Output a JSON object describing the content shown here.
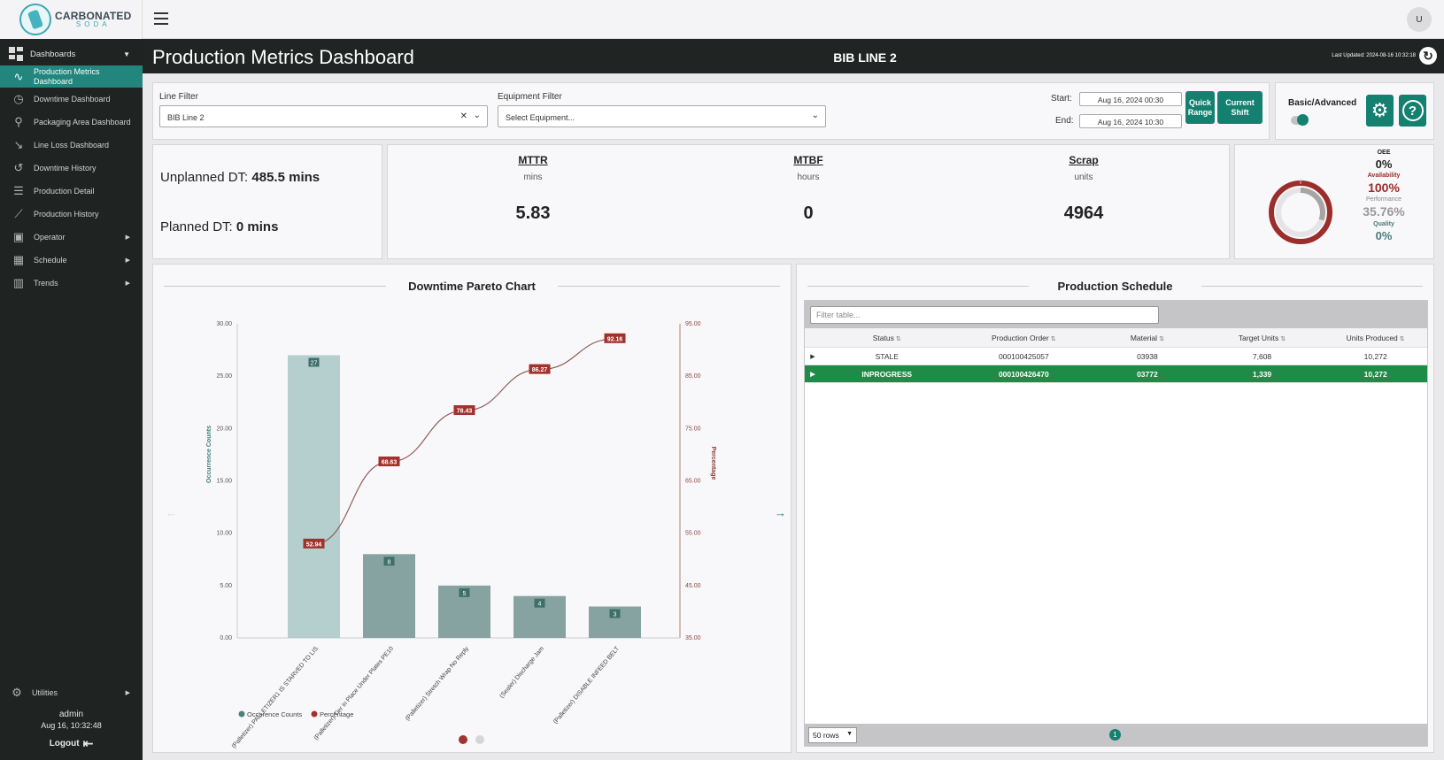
{
  "logo": {
    "line1": "CARBONATED",
    "line2": "SODA"
  },
  "sidebar": {
    "section": "Dashboards",
    "items": [
      {
        "label": "Production Metrics Dashboard",
        "icon": "trending-chart-icon",
        "glyph": "∿",
        "active": true
      },
      {
        "label": "Downtime Dashboard",
        "icon": "stopwatch-icon",
        "glyph": "◷"
      },
      {
        "label": "Packaging Area Dashboard",
        "icon": "map-pin-icon",
        "glyph": "⚲"
      },
      {
        "label": "Line Loss Dashboard",
        "icon": "trending-down-icon",
        "glyph": "↘"
      },
      {
        "label": "Downtime History",
        "icon": "history-icon",
        "glyph": "↺"
      },
      {
        "label": "Production Detail",
        "icon": "list-detail-icon",
        "glyph": "☰"
      },
      {
        "label": "Production History",
        "icon": "chart-history-icon",
        "glyph": "⟋"
      },
      {
        "label": "Operator",
        "icon": "operator-badge-icon",
        "glyph": "▣",
        "expandable": true
      },
      {
        "label": "Schedule",
        "icon": "calendar-icon",
        "glyph": "▦",
        "expandable": true
      },
      {
        "label": "Trends",
        "icon": "bar-chart-icon",
        "glyph": "▥",
        "expandable": true
      }
    ],
    "utilities": "Utilities",
    "user": "admin",
    "datetime": "Aug 16, 10:32:48",
    "logout": "Logout"
  },
  "topbar": {
    "avatar": "U"
  },
  "header": {
    "title": "Production Metrics Dashboard",
    "line": "BIB LINE 2",
    "last_updated": "Last Updated: 2024-08-16 10:32:18"
  },
  "filters": {
    "line_label": "Line Filter",
    "line_value": "BIB Line 2",
    "equipment_label": "Equipment Filter",
    "equipment_placeholder": "Select Equipment...",
    "start_label": "Start:",
    "start_value": "Aug 16, 2024 00:30",
    "end_label": "End:",
    "end_value": "Aug 16, 2024 10:30",
    "quick_range": "Quick Range",
    "current_shift": "Current Shift"
  },
  "settings": {
    "basic_advanced": "Basic/Advanced"
  },
  "downtime": {
    "unplanned_label": "Unplanned DT:",
    "unplanned_value": "485.5 mins",
    "planned_label": "Planned DT:",
    "planned_value": "0 mins"
  },
  "metrics": [
    {
      "title": "MTTR",
      "unit": "mins",
      "value": "5.83"
    },
    {
      "title": "MTBF",
      "unit": "hours",
      "value": "0"
    },
    {
      "title": "Scrap",
      "unit": "units",
      "value": "4964"
    }
  ],
  "oee": {
    "oee_label": "OEE",
    "oee_value": "0%",
    "availability_label": "Availability",
    "availability_value": "100%",
    "performance_label": "Performance",
    "performance_value": "35.76%",
    "quality_label": "Quality",
    "quality_value": "0%",
    "colors": {
      "availability": "#9b2d2b",
      "performance": "#9a9a9a",
      "quality": "#4b7a7a"
    }
  },
  "pareto": {
    "title": "Downtime Pareto Chart"
  },
  "chart_data": {
    "type": "bar",
    "title": "Downtime Pareto Chart",
    "categories": [
      "(Palletizer) PALLETIZER1 IS STARVED TO LIS",
      "(Palletizer) Tier in Place Under Plates PE10",
      "(Palletizer) Stretch Wrap No Reply",
      "(Sealer) Discharge Jam",
      "(Palletizer) DISABLE INFEED BELT"
    ],
    "series": [
      {
        "name": "Occurence Counts",
        "type": "bar",
        "axis": "left",
        "values": [
          27,
          8,
          5,
          4,
          3
        ],
        "color": "#8fb3b1"
      },
      {
        "name": "Percentage",
        "type": "line",
        "axis": "right",
        "values": [
          52.94,
          68.63,
          78.43,
          86.27,
          92.16
        ],
        "color": "#a0443f"
      }
    ],
    "ylabel": "Occurrence Counts",
    "y2label": "Percentage",
    "ylim": [
      0,
      30
    ],
    "y2lim": [
      35,
      95
    ],
    "yticks": [
      "0.00",
      "5.00",
      "10.00",
      "15.00",
      "20.00",
      "25.00",
      "30.00"
    ],
    "y2ticks": [
      "35.00",
      "45.00",
      "55.00",
      "65.00",
      "75.00",
      "85.00",
      "95.00"
    ],
    "legend": "bottom-left"
  },
  "schedule": {
    "title": "Production Schedule",
    "filter_placeholder": "Filter table...",
    "columns": [
      "Status",
      "Production Order",
      "Material",
      "Target Units",
      "Units Produced"
    ],
    "rows": [
      {
        "status": "STALE",
        "order": "000100425057",
        "material": "03938",
        "target": "7,608",
        "produced": "10,272",
        "active": false
      },
      {
        "status": "INPROGRESS",
        "order": "000100426470",
        "material": "03772",
        "target": "1,339",
        "produced": "10,272",
        "active": true
      }
    ],
    "rows_per_page": "50 rows",
    "page": "1"
  }
}
